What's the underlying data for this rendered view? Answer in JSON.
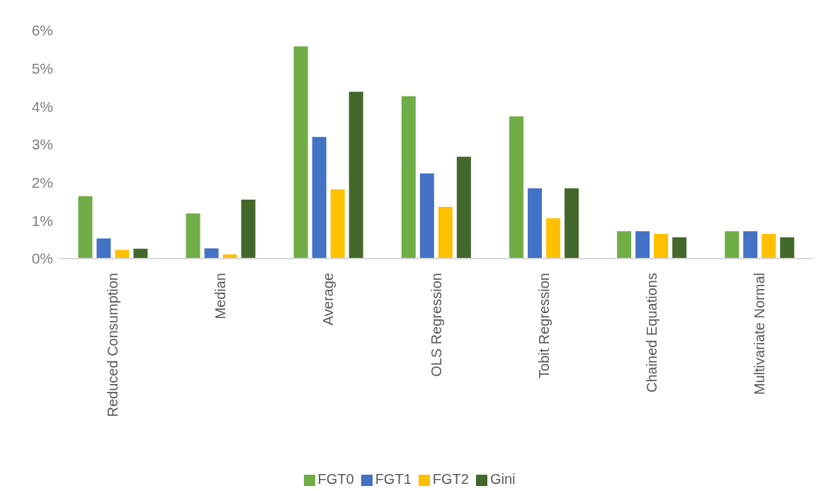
{
  "chart_data": {
    "type": "bar",
    "categories": [
      "Reduced Consumption",
      "Median",
      "Average",
      "OLS Regression",
      "Tobit Regression",
      "Chained Equations",
      "Multivariate Normal"
    ],
    "series": [
      {
        "name": "FGT0",
        "color": "#70ad47",
        "values": [
          1.64,
          1.19,
          5.58,
          4.27,
          3.74,
          0.72,
          0.72
        ]
      },
      {
        "name": "FGT1",
        "color": "#4472c4",
        "values": [
          0.53,
          0.27,
          3.2,
          2.24,
          1.85,
          0.72,
          0.72
        ]
      },
      {
        "name": "FGT2",
        "color": "#ffc000",
        "values": [
          0.23,
          0.11,
          1.82,
          1.36,
          1.06,
          0.65,
          0.65
        ]
      },
      {
        "name": "Gini",
        "color": "#43682b",
        "values": [
          0.26,
          1.55,
          4.39,
          2.68,
          1.85,
          0.56,
          0.56
        ]
      }
    ],
    "ylim": [
      0,
      6
    ],
    "yticks": [
      {
        "value": 0,
        "label": "0%"
      },
      {
        "value": 1,
        "label": "1%"
      },
      {
        "value": 2,
        "label": "2%"
      },
      {
        "value": 3,
        "label": "3%"
      },
      {
        "value": 4,
        "label": "4%"
      },
      {
        "value": 5,
        "label": "5%"
      },
      {
        "value": 6,
        "label": "6%"
      }
    ],
    "grid": false,
    "legend": "bottom"
  }
}
